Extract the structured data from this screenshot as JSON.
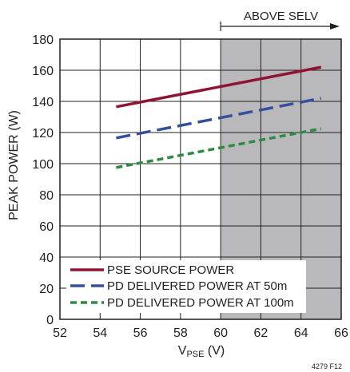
{
  "chart_data": {
    "type": "line",
    "xlabel_main": "V",
    "xlabel_sub": "PSE",
    "xlabel_unit": " (V)",
    "ylabel": "PEAK POWER (W)",
    "xlim": [
      52,
      66
    ],
    "ylim": [
      0,
      180
    ],
    "xticks": [
      52,
      54,
      56,
      58,
      60,
      62,
      64,
      66
    ],
    "yticks": [
      0,
      20,
      40,
      60,
      80,
      100,
      120,
      140,
      160,
      180
    ],
    "grid": true,
    "legend_position": "bottom-left",
    "shaded_region": {
      "x_from": 60,
      "x_to": 66,
      "label": "ABOVE SELV",
      "color": "#b9b9bb"
    },
    "series": [
      {
        "name": "PSE SOURCE POWER",
        "x": [
          54.8,
          65
        ],
        "y": [
          136.5,
          162
        ],
        "color": "#8f1434",
        "dash": "solid"
      },
      {
        "name": "PD DELIVERED POWER AT 50m",
        "x": [
          54.8,
          65
        ],
        "y": [
          116.5,
          142
        ],
        "color": "#34509a",
        "dash": "long"
      },
      {
        "name": "PD DELIVERED POWER AT 100m",
        "x": [
          54.8,
          65
        ],
        "y": [
          97.5,
          122.5
        ],
        "color": "#2e8b46",
        "dash": "short"
      }
    ],
    "figure_id": "4279 F12"
  }
}
